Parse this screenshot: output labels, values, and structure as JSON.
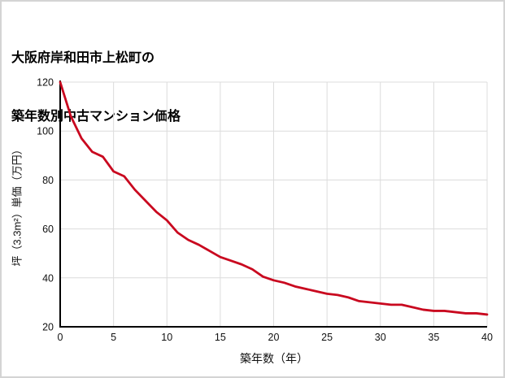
{
  "page": {
    "background": "#ffffff",
    "border_color": "#d4d4d4"
  },
  "title": {
    "line1": "大阪府岸和田市上松町の",
    "line2": "築年数別中古マンション価格"
  },
  "chart_data": {
    "type": "line",
    "title": "大阪府岸和田市上松町の築年数別中古マンション価格",
    "xlabel": "築年数（年）",
    "ylabel": "坪（3.3m²）単価（万円）",
    "xlim": [
      0,
      40
    ],
    "ylim": [
      20,
      120
    ],
    "xticks": [
      0,
      5,
      10,
      15,
      20,
      25,
      30,
      35,
      40
    ],
    "yticks": [
      20,
      40,
      60,
      80,
      100,
      120
    ],
    "grid": true,
    "legend": false,
    "line_color": "#c9081f",
    "grid_color": "#dcdcdc",
    "axis_color": "#000000",
    "tick_label_color": "#111111",
    "x": [
      0,
      1,
      2,
      3,
      4,
      5,
      6,
      7,
      8,
      9,
      10,
      11,
      12,
      13,
      14,
      15,
      16,
      17,
      18,
      19,
      20,
      21,
      22,
      23,
      24,
      25,
      26,
      27,
      28,
      29,
      30,
      31,
      32,
      33,
      34,
      35,
      36,
      37,
      38,
      39,
      40
    ],
    "values": [
      120,
      106,
      97,
      91.5,
      89.5,
      83.5,
      81.5,
      76,
      71.5,
      67,
      63.5,
      58.5,
      55.5,
      53.5,
      51,
      48.5,
      47,
      45.5,
      43.5,
      40.5,
      39,
      38,
      36.5,
      35.5,
      34.5,
      33.5,
      33,
      32,
      30.5,
      30,
      29.5,
      29,
      29,
      28,
      27,
      26.5,
      26.5,
      26,
      25.5,
      25.5,
      25
    ]
  }
}
